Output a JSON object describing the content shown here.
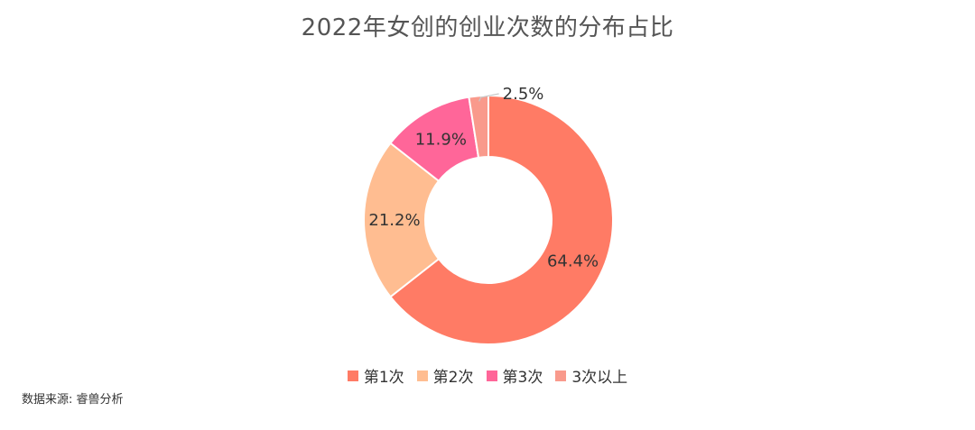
{
  "title": "2022年女创的创业次数的分布占比",
  "source": "数据来源: 睿兽分析",
  "chart_data": {
    "type": "pie",
    "donut": true,
    "title": "2022年女创的创业次数的分布占比",
    "categories": [
      "第1次",
      "第2次",
      "第3次",
      "3次以上"
    ],
    "values": [
      64.4,
      21.2,
      11.9,
      2.5
    ],
    "labels": [
      "64.4%",
      "21.2%",
      "11.9%",
      "2.5%"
    ],
    "colors": [
      "#ff7b65",
      "#ffbd91",
      "#ff6699",
      "#f99a8c"
    ],
    "legend_position": "bottom"
  }
}
